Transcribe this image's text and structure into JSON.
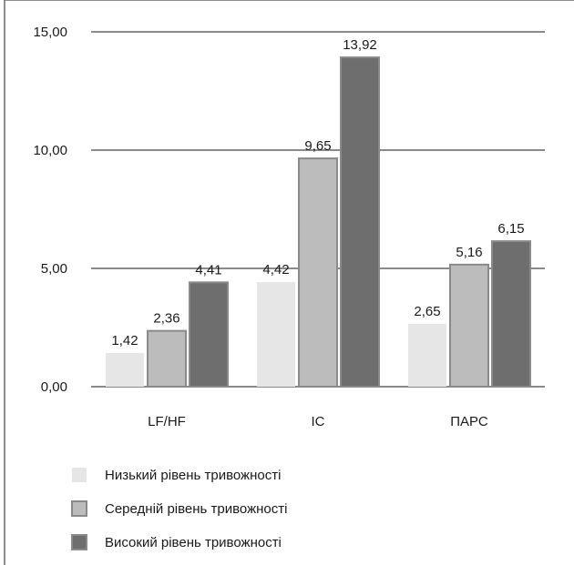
{
  "chart_data": {
    "type": "bar",
    "categories": [
      "LF/HF",
      "IC",
      "ПАРС"
    ],
    "series": [
      {
        "name": "Низький рівень тривожності",
        "values": [
          1.42,
          4.42,
          2.65
        ],
        "labels": [
          "1,42",
          "4,42",
          "2,65"
        ],
        "color": "#e6e6e6"
      },
      {
        "name": "Середній рівень тривожності",
        "values": [
          2.36,
          9.65,
          5.16
        ],
        "labels": [
          "2,36",
          "9,65",
          "5,16"
        ],
        "color": "#bcbcbc"
      },
      {
        "name": "Високий рівень тривожності",
        "values": [
          4.41,
          13.92,
          6.15
        ],
        "labels": [
          "4,41",
          "13,92",
          "6,15"
        ],
        "color": "#6e6e6e"
      }
    ],
    "ylim": [
      0,
      15
    ],
    "yticks": [
      0,
      5,
      10,
      15
    ],
    "ytick_labels": [
      "0,00",
      "5,00",
      "10,00",
      "15,00"
    ],
    "grid": true,
    "legend_position": "bottom-left",
    "title": "",
    "xlabel": "",
    "ylabel": ""
  }
}
